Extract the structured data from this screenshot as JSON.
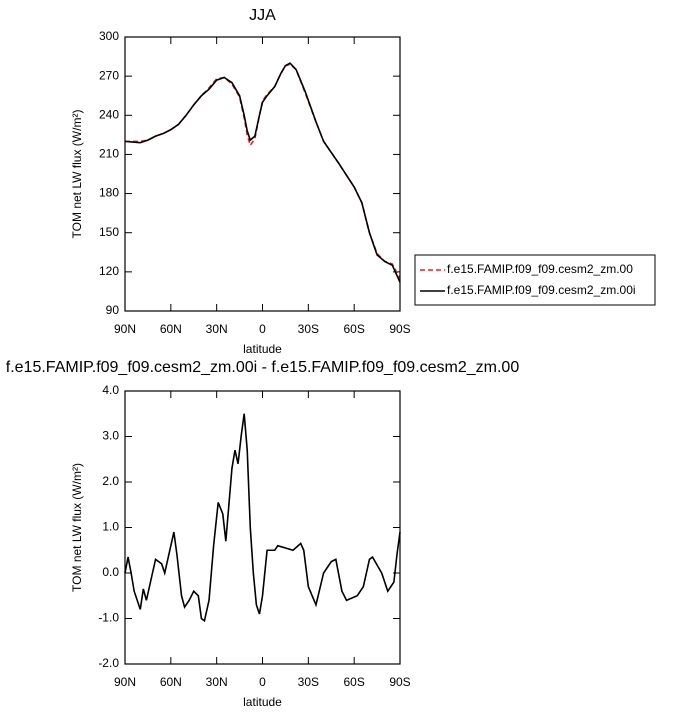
{
  "chart_data": [
    {
      "type": "line",
      "title": "JJA",
      "x_label": "latitude",
      "y_label": "TOM net LW flux (W/m²)",
      "x": [
        90,
        80,
        75,
        70,
        65,
        60,
        55,
        50,
        45,
        40,
        35,
        30,
        25,
        20,
        15,
        12,
        10,
        8,
        5,
        2,
        0,
        -3,
        -8,
        -12,
        -15,
        -18,
        -22,
        -28,
        -35,
        -40,
        -50,
        -60,
        -65,
        -70,
        -75,
        -80,
        -85,
        -90
      ],
      "series": [
        {
          "name": "f.e15.FAMIP.f09_f09.cesm2_zm.00",
          "color": "#d62728",
          "line_style": "dashed",
          "values": [
            220,
            220,
            221,
            224,
            226,
            229,
            233,
            240,
            248,
            255,
            261,
            268,
            269,
            264,
            254,
            238,
            225,
            217,
            222,
            240,
            251,
            256,
            262,
            272,
            278,
            279,
            275,
            257,
            235,
            220,
            203,
            185,
            173,
            150,
            134,
            128,
            126,
            115
          ]
        },
        {
          "name": "f.e15.FAMIP.f09_f09.cesm2_zm.00i",
          "color": "#000000",
          "line_style": "solid",
          "values": [
            220,
            219,
            221,
            224,
            226,
            229,
            233,
            240,
            248,
            255,
            260,
            267,
            269,
            265,
            255,
            240,
            228,
            221,
            224,
            240,
            250,
            255,
            262,
            272,
            278,
            280,
            275,
            258,
            235,
            220,
            203,
            185,
            173,
            150,
            133,
            128,
            125,
            112
          ]
        }
      ],
      "xlim": [
        90,
        -90
      ],
      "xticks": [
        {
          "value": 90,
          "label": "90N"
        },
        {
          "value": 60,
          "label": "60N"
        },
        {
          "value": 30,
          "label": "30N"
        },
        {
          "value": 0,
          "label": "0"
        },
        {
          "value": -30,
          "label": "30S"
        },
        {
          "value": -60,
          "label": "60S"
        },
        {
          "value": -90,
          "label": "90S"
        }
      ],
      "ylim": [
        90,
        300
      ],
      "yticks": [
        90,
        120,
        150,
        180,
        210,
        240,
        270,
        300
      ],
      "legend": "outside-right"
    },
    {
      "type": "line",
      "title": "f.e15.FAMIP.f09_f09.cesm2_zm.00i - f.e15.FAMIP.f09_f09.cesm2_zm.00",
      "x_label": "latitude",
      "y_label": "TOM net LW flux (W/m²)",
      "x": [
        90,
        88,
        86,
        84,
        80,
        78,
        76,
        72,
        70,
        66,
        64,
        60,
        58,
        56,
        53,
        51,
        48,
        45,
        42,
        40,
        38,
        35,
        32,
        29,
        26,
        24,
        22,
        20,
        18,
        16,
        14,
        12,
        10,
        8,
        6,
        4,
        2,
        0,
        -3,
        -8,
        -10,
        -20,
        -25,
        -27,
        -30,
        -35,
        -40,
        -45,
        -48,
        -52,
        -55,
        -62,
        -66,
        -70,
        -72,
        -78,
        -82,
        -86,
        -88,
        -90
      ],
      "series": [
        {
          "color": "#000000",
          "line_style": "solid",
          "values": [
            0,
            0.35,
            0,
            -0.4,
            -0.8,
            -0.35,
            -0.6,
            0,
            0.3,
            0.2,
            0,
            0.6,
            0.9,
            0.4,
            -0.5,
            -0.75,
            -0.6,
            -0.4,
            -0.5,
            -1.0,
            -1.05,
            -0.6,
            0.6,
            1.55,
            1.3,
            0.7,
            1.5,
            2.3,
            2.7,
            2.4,
            3.0,
            3.5,
            2.7,
            1.0,
            0,
            -0.7,
            -0.9,
            -0.5,
            0.5,
            0.5,
            0.6,
            0.5,
            0.65,
            0.5,
            -0.3,
            -0.7,
            0,
            0.25,
            0.3,
            -0.4,
            -0.6,
            -0.5,
            -0.3,
            0.3,
            0.35,
            0,
            -0.4,
            -0.2,
            0.4,
            0.9
          ]
        }
      ],
      "xlim": [
        90,
        -90
      ],
      "xticks": [
        {
          "value": 90,
          "label": "90N"
        },
        {
          "value": 60,
          "label": "60N"
        },
        {
          "value": 30,
          "label": "30N"
        },
        {
          "value": 0,
          "label": "0"
        },
        {
          "value": -30,
          "label": "30S"
        },
        {
          "value": -60,
          "label": "60S"
        },
        {
          "value": -90,
          "label": "90S"
        }
      ],
      "ylim": [
        -2,
        4
      ],
      "yticks": [
        {
          "value": -2,
          "label": "-2.0"
        },
        {
          "value": -1,
          "label": "-1.0"
        },
        {
          "value": 0,
          "label": "0.0"
        },
        {
          "value": 1,
          "label": "1.0"
        },
        {
          "value": 2,
          "label": "2.0"
        },
        {
          "value": 3,
          "label": "3.0"
        },
        {
          "value": 4,
          "label": "4.0"
        }
      ]
    }
  ]
}
